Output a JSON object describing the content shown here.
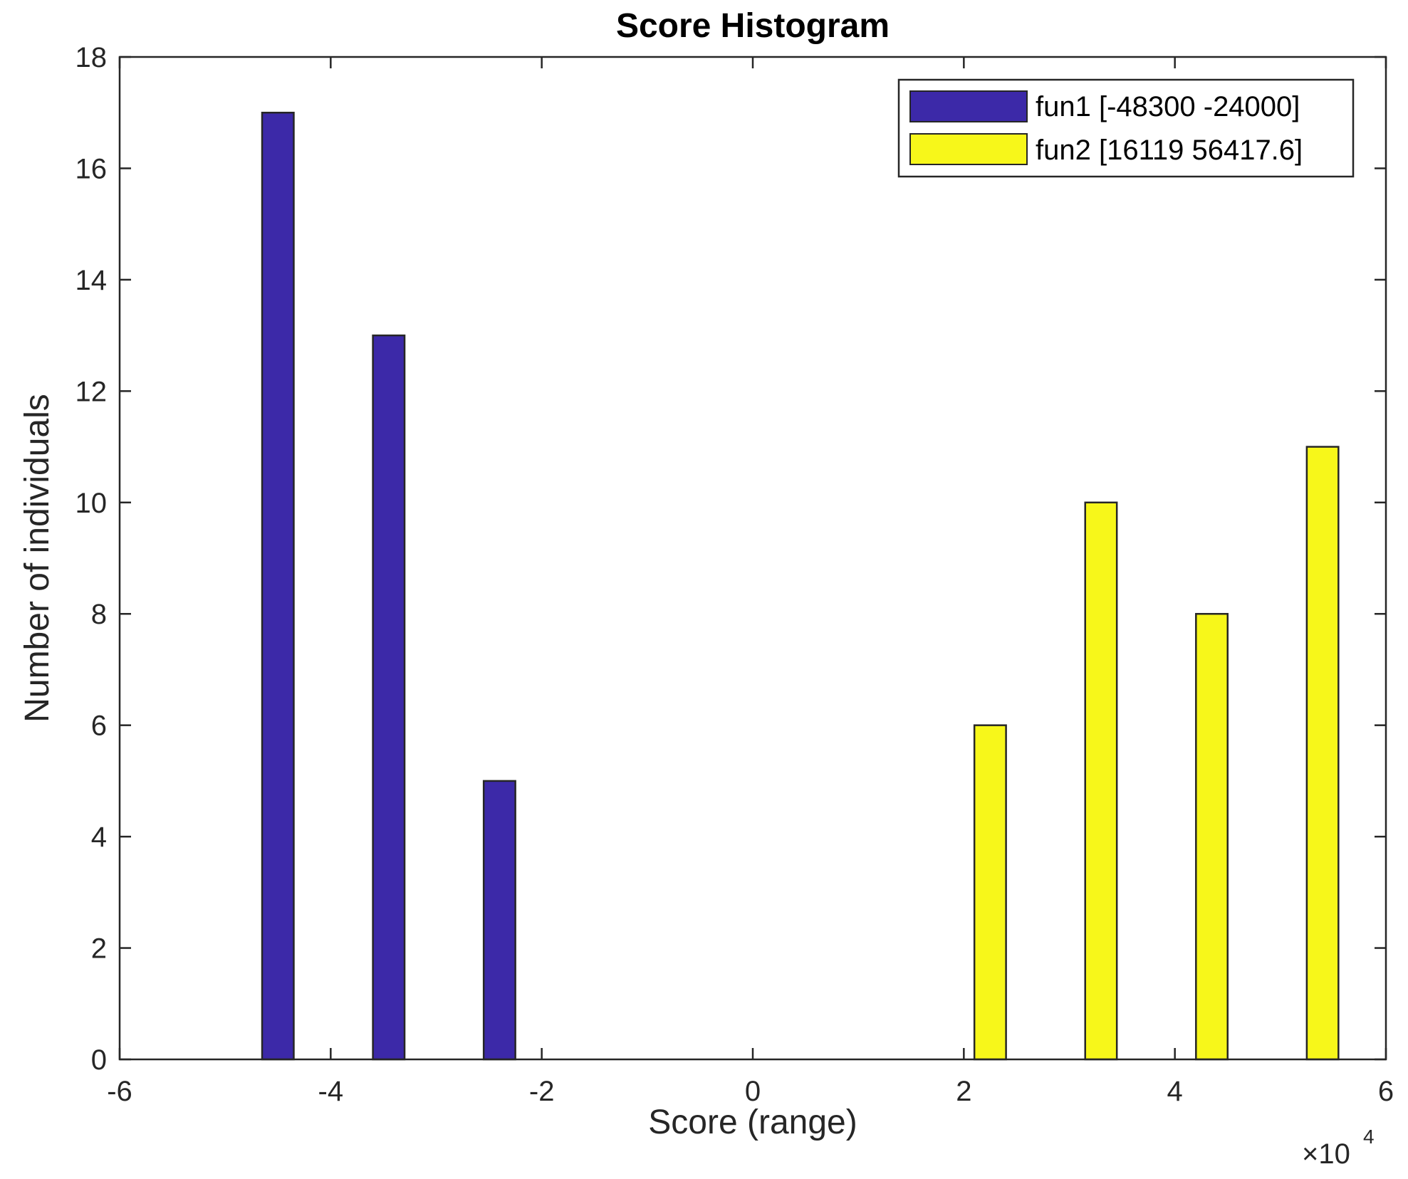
{
  "chart_data": {
    "type": "bar",
    "title": "Score Histogram",
    "xlabel": "Score (range)",
    "ylabel": "Number of individuals",
    "x_exponent_base": "×10",
    "x_exponent_power": "4",
    "xlim": [
      -6,
      6
    ],
    "ylim": [
      0,
      18
    ],
    "x_ticks": [
      -6,
      -4,
      -2,
      0,
      2,
      4,
      6
    ],
    "x_tick_labels": [
      "-6",
      "-4",
      "-2",
      "0",
      "2",
      "4",
      "6"
    ],
    "y_ticks": [
      0,
      2,
      4,
      6,
      8,
      10,
      12,
      14,
      16,
      18
    ],
    "y_tick_labels": [
      "0",
      "2",
      "4",
      "6",
      "8",
      "10",
      "12",
      "14",
      "16",
      "18"
    ],
    "grid": false,
    "legend_position": "top-right",
    "series": [
      {
        "name": "fun1 [-48300 -24000]",
        "color": "#3c29a8",
        "x": [
          -4.5,
          -3.45,
          -2.4
        ],
        "values": [
          17,
          13,
          5
        ]
      },
      {
        "name": "fun2 [16119 56417.6]",
        "color": "#f7f71a",
        "x": [
          2.25,
          3.3,
          4.35,
          5.4
        ],
        "values": [
          6,
          10,
          8,
          11
        ]
      }
    ]
  }
}
